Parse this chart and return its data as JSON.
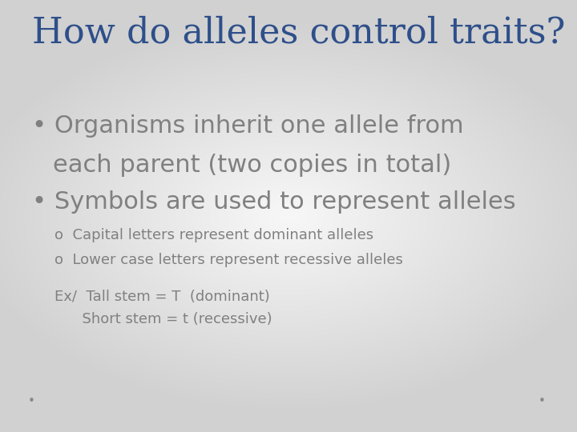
{
  "title": "How do alleles control traits?",
  "title_color": "#2E4F8A",
  "title_fontsize": 32,
  "title_fontstyle": "normal",
  "title_fontfamily": "serif",
  "bullet_color": "#808080",
  "bullet_fontsize": 22,
  "sub_bullet_fontsize": 13,
  "example_fontsize": 13,
  "bullet1_line1": "Organisms inherit one allele from",
  "bullet1_line2": "each parent (two copies in total)",
  "bullet2": "Symbols are used to represent alleles",
  "sub1": "Capital letters represent dominant alleles",
  "sub2": "Lower case letters represent recessive alleles",
  "example_line1": "Ex/  Tall stem = T  (dominant)",
  "example_line2": "      Short stem = t (recessive)",
  "dot_color": "#888888",
  "bg_top": "#c8c8c8",
  "bg_bottom": "#f8f8f8",
  "bg_center": "#ffffff"
}
